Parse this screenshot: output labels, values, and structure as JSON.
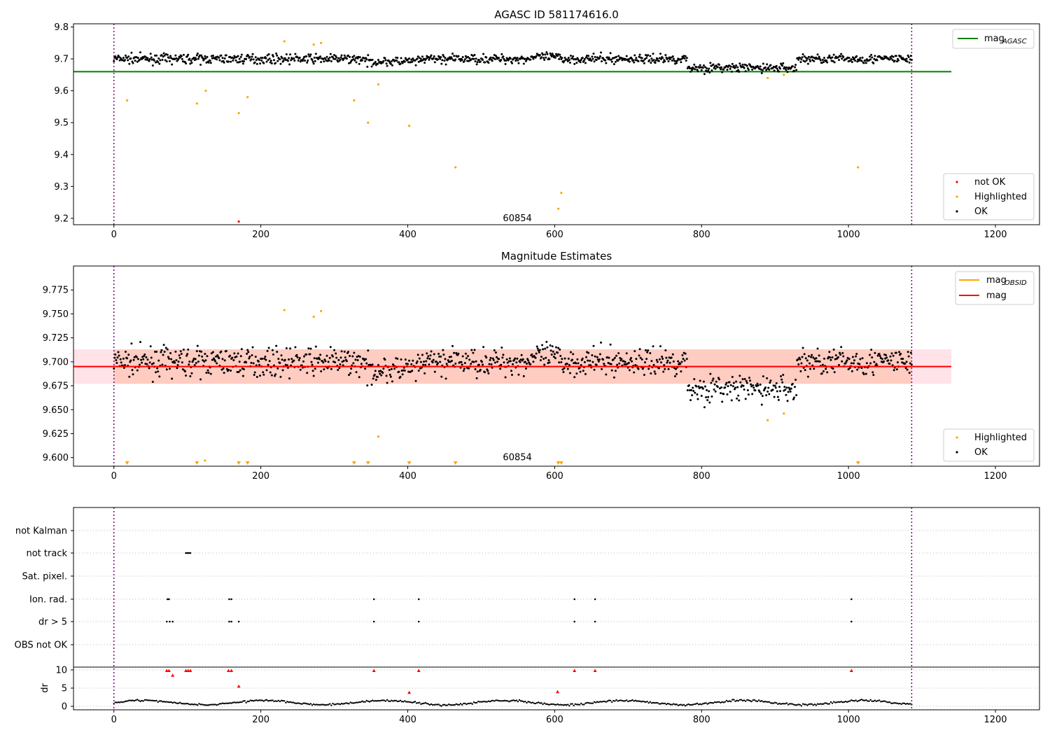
{
  "chart_data": [
    {
      "type": "scatter",
      "title": "AGASC ID 581174616.0",
      "xlim": [
        -55,
        1260
      ],
      "ylim": [
        9.18,
        9.81
      ],
      "xticks": [
        "0",
        "200",
        "400",
        "600",
        "800",
        "1000",
        "1200"
      ],
      "yticks": [
        "9.2",
        "9.3",
        "9.4",
        "9.5",
        "9.6",
        "9.7",
        "9.8"
      ],
      "vlines": [
        0,
        1086
      ],
      "annotation": {
        "x": 520,
        "y": 9.2,
        "text": "60854"
      },
      "mag_agasc": 9.66,
      "mag_agasc_xrange": [
        -55,
        1140
      ],
      "ok_band": {
        "description": "dense black points",
        "baseline": 9.7,
        "scatter": 0.02
      },
      "series": [
        {
          "name": "not OK",
          "color": "#ff0000",
          "points": [
            [
              170,
              9.19
            ]
          ]
        },
        {
          "name": "Highlighted",
          "color": "#ffa500",
          "points": [
            [
              18,
              9.57
            ],
            [
              113,
              9.56
            ],
            [
              125,
              9.6
            ],
            [
              170,
              9.53
            ],
            [
              182,
              9.58
            ],
            [
              232,
              9.755
            ],
            [
              272,
              9.745
            ],
            [
              282,
              9.75
            ],
            [
              327,
              9.57
            ],
            [
              346,
              9.5
            ],
            [
              360,
              9.62
            ],
            [
              402,
              9.49
            ],
            [
              465,
              9.36
            ],
            [
              605,
              9.23
            ],
            [
              609,
              9.28
            ],
            [
              890,
              9.64
            ],
            [
              912,
              9.65
            ],
            [
              1013,
              9.36
            ]
          ]
        },
        {
          "name": "OK",
          "color": "#000000",
          "points": []
        }
      ],
      "legend_upper": [
        {
          "label": "mag",
          "sub": "AGASC",
          "color": "#008000"
        }
      ],
      "legend_lower": [
        {
          "label": "not OK",
          "color": "#ff0000"
        },
        {
          "label": "Highlighted",
          "color": "#ffa500"
        },
        {
          "label": "OK",
          "color": "#000000"
        }
      ]
    },
    {
      "type": "scatter",
      "title": "Magnitude Estimates",
      "xlim": [
        -55,
        1260
      ],
      "ylim": [
        9.591,
        9.8
      ],
      "xticks": [
        "0",
        "200",
        "400",
        "600",
        "800",
        "1000",
        "1200"
      ],
      "yticks": [
        "9.600",
        "9.625",
        "9.650",
        "9.675",
        "9.700",
        "9.725",
        "9.750",
        "9.775"
      ],
      "vlines": [
        0,
        1086
      ],
      "annotation": {
        "x": 520,
        "y": 9.6,
        "text": "60854"
      },
      "mag": 9.695,
      "mag_obsid_band": [
        9.677,
        9.713
      ],
      "series": [
        {
          "name": "Highlighted",
          "color": "#ffa500",
          "points": [
            [
              124,
              9.597
            ],
            [
              232,
              9.754
            ],
            [
              272,
              9.747
            ],
            [
              282,
              9.753
            ],
            [
              360,
              9.622
            ],
            [
              890,
              9.639
            ],
            [
              912,
              9.646
            ]
          ],
          "offscale_x": [
            18,
            113,
            170,
            182,
            327,
            346,
            402,
            465,
            605,
            609,
            1013
          ]
        },
        {
          "name": "OK",
          "color": "#000000",
          "points": []
        }
      ],
      "legend_upper": [
        {
          "label": "mag",
          "sub": "OBSID",
          "color": "#ffa500"
        },
        {
          "label": "mag",
          "sub": "",
          "color": "#ff0000"
        }
      ],
      "legend_lower": [
        {
          "label": "Highlighted",
          "color": "#ffa500"
        },
        {
          "label": "OK",
          "color": "#000000"
        }
      ]
    },
    {
      "type": "scatter",
      "title": "",
      "xlim": [
        -55,
        1260
      ],
      "xticks": [
        "0",
        "200",
        "400",
        "600",
        "800",
        "1000",
        "1200"
      ],
      "vlines": [
        0,
        1086
      ],
      "flag_rows": [
        "not Kalman",
        "not track",
        "Sat. pixel.",
        "Ion. rad.",
        "dr > 5",
        "OBS not OK"
      ],
      "flag_points": {
        "not track": [
          98,
          100,
          102,
          104
        ],
        "Ion. rad.": [
          73,
          75,
          157,
          160,
          354,
          415,
          627,
          655,
          1004
        ],
        "dr > 5": [
          72,
          76,
          80,
          157,
          160,
          170,
          354,
          415,
          627,
          655,
          1004
        ]
      },
      "dr_ylabel": "dr",
      "dr_ylim": [
        0,
        10
      ],
      "dr_yticks": [
        "0",
        "5",
        "10"
      ],
      "dr_red_points": [
        [
          72,
          9.8
        ],
        [
          75,
          9.8
        ],
        [
          80,
          8.5
        ],
        [
          98,
          9.8
        ],
        [
          101,
          9.8
        ],
        [
          104,
          9.8
        ],
        [
          156,
          9.8
        ],
        [
          160,
          9.8
        ],
        [
          170,
          5.5
        ],
        [
          354,
          9.8
        ],
        [
          402,
          3.8
        ],
        [
          415,
          9.8
        ],
        [
          604,
          4.0
        ],
        [
          627,
          9.8
        ],
        [
          655,
          9.8
        ],
        [
          1004,
          9.8
        ]
      ],
      "dr_baseline": {
        "description": "black line of small points near zero",
        "mean": 1.0
      }
    }
  ]
}
